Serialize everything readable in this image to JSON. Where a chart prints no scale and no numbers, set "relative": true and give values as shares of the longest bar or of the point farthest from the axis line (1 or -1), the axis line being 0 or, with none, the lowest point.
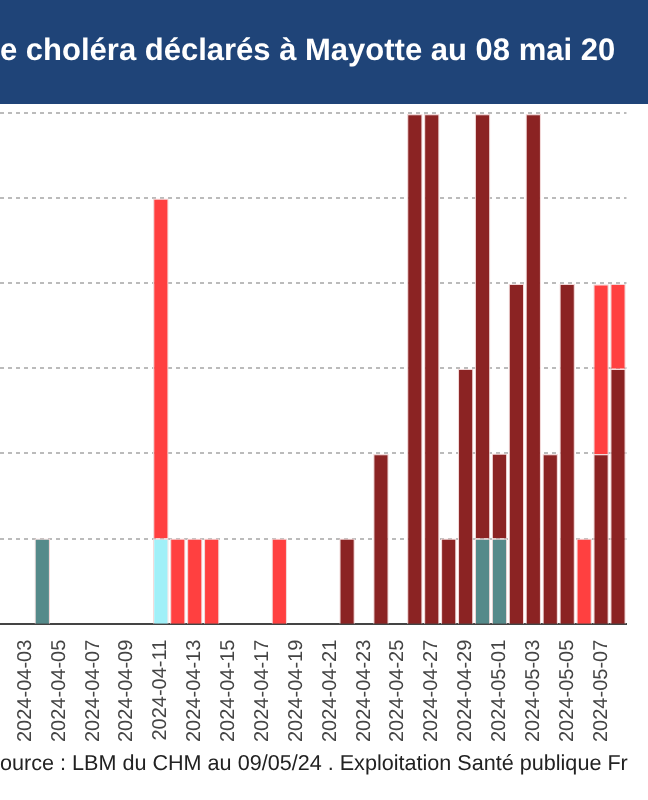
{
  "chart_data": {
    "type": "bar",
    "title": "e choléra déclarés à Mayotte au 08 mai 20",
    "annotations": [
      "ource : LBM du CHM au 09/05/24 . Exploitation Santé publique Fr"
    ],
    "categories": [
      null,
      "2024-04-03",
      null,
      "2024-04-05",
      null,
      "2024-04-07",
      null,
      "2024-04-09",
      null,
      "2024-04-11",
      null,
      "2024-04-13",
      null,
      "2024-04-15",
      null,
      "2024-04-17",
      null,
      "2024-04-19",
      null,
      "2024-04-21",
      null,
      "2024-04-23",
      null,
      "2024-04-25",
      null,
      "2024-04-27",
      null,
      "2024-04-29",
      null,
      "2024-05-01",
      null,
      "2024-05-03",
      null,
      "2024-05-05",
      null,
      "2024-05-07",
      null
    ],
    "stacked": true,
    "relative": true,
    "grid": "y",
    "legend": false,
    "series": [
      {
        "color": "#558a8a",
        "values": [
          null,
          null,
          0.167,
          null,
          null,
          null,
          null,
          null,
          null,
          null,
          null,
          null,
          null,
          null,
          null,
          null,
          null,
          null,
          null,
          null,
          null,
          null,
          null,
          null,
          null,
          null,
          null,
          null,
          0.167,
          0.167,
          null,
          null,
          null,
          null,
          null,
          null,
          null
        ]
      },
      {
        "color": "#a0f0f8",
        "values": [
          null,
          null,
          null,
          null,
          null,
          null,
          null,
          null,
          null,
          0.167,
          null,
          null,
          null,
          null,
          null,
          null,
          null,
          null,
          null,
          null,
          null,
          null,
          null,
          null,
          null,
          null,
          null,
          null,
          null,
          null,
          null,
          null,
          null,
          null,
          null,
          null,
          null
        ]
      },
      {
        "color": "#8b2323",
        "values": [
          null,
          null,
          null,
          null,
          null,
          null,
          null,
          null,
          null,
          null,
          null,
          null,
          null,
          null,
          null,
          null,
          null,
          null,
          null,
          null,
          0.167,
          null,
          0.333,
          null,
          1,
          1,
          0.167,
          0.5,
          0.833,
          0.167,
          0.667,
          1,
          0.333,
          0.667,
          null,
          0.333,
          0.5
        ]
      },
      {
        "color": "#ff4040",
        "values": [
          null,
          null,
          null,
          null,
          null,
          null,
          null,
          null,
          null,
          0.667,
          0.167,
          0.167,
          0.167,
          null,
          null,
          null,
          0.167,
          null,
          null,
          null,
          null,
          null,
          null,
          null,
          null,
          null,
          null,
          null,
          null,
          null,
          null,
          null,
          null,
          null,
          0.167,
          0.333,
          0.167
        ]
      }
    ]
  }
}
